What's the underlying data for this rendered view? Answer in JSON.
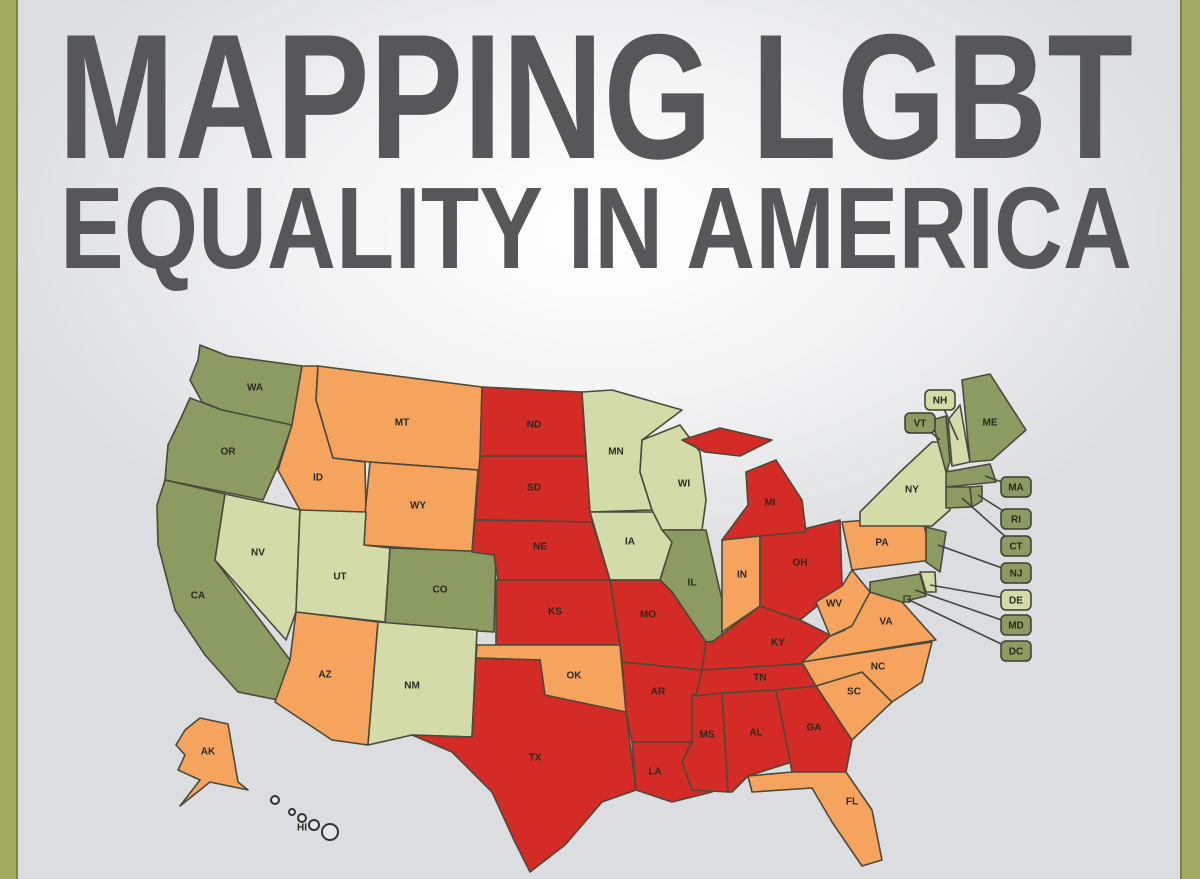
{
  "title": {
    "line1": "MAPPING LGBT",
    "line2": "EQUALITY IN AMERICA"
  },
  "colors": {
    "high": "#8c9b62",
    "medium": "#d3dba9",
    "low": "#f6a35e",
    "lowest": "#d42b27",
    "title": "#575759",
    "border": "#a3aa62",
    "hawaii": "#e4e5e6"
  },
  "states": [
    {
      "code": "WA",
      "category": "high"
    },
    {
      "code": "OR",
      "category": "high"
    },
    {
      "code": "CA",
      "category": "high"
    },
    {
      "code": "NV",
      "category": "medium"
    },
    {
      "code": "ID",
      "category": "low"
    },
    {
      "code": "MT",
      "category": "low"
    },
    {
      "code": "WY",
      "category": "low"
    },
    {
      "code": "UT",
      "category": "medium"
    },
    {
      "code": "CO",
      "category": "high"
    },
    {
      "code": "AZ",
      "category": "low"
    },
    {
      "code": "NM",
      "category": "medium"
    },
    {
      "code": "ND",
      "category": "lowest"
    },
    {
      "code": "SD",
      "category": "lowest"
    },
    {
      "code": "NE",
      "category": "lowest"
    },
    {
      "code": "KS",
      "category": "lowest"
    },
    {
      "code": "OK",
      "category": "low"
    },
    {
      "code": "TX",
      "category": "lowest"
    },
    {
      "code": "MN",
      "category": "medium"
    },
    {
      "code": "IA",
      "category": "medium"
    },
    {
      "code": "WI",
      "category": "medium"
    },
    {
      "code": "IL",
      "category": "high"
    },
    {
      "code": "MO",
      "category": "lowest"
    },
    {
      "code": "AR",
      "category": "lowest"
    },
    {
      "code": "LA",
      "category": "lowest"
    },
    {
      "code": "MS",
      "category": "lowest"
    },
    {
      "code": "AL",
      "category": "lowest"
    },
    {
      "code": "TN",
      "category": "lowest"
    },
    {
      "code": "KY",
      "category": "lowest"
    },
    {
      "code": "IN",
      "category": "low"
    },
    {
      "code": "OH",
      "category": "lowest"
    },
    {
      "code": "MI",
      "category": "lowest"
    },
    {
      "code": "GA",
      "category": "lowest"
    },
    {
      "code": "FL",
      "category": "low"
    },
    {
      "code": "SC",
      "category": "low"
    },
    {
      "code": "NC",
      "category": "low"
    },
    {
      "code": "VA",
      "category": "low"
    },
    {
      "code": "WV",
      "category": "low"
    },
    {
      "code": "PA",
      "category": "low"
    },
    {
      "code": "NY",
      "category": "medium"
    },
    {
      "code": "VT",
      "category": "high"
    },
    {
      "code": "NH",
      "category": "medium"
    },
    {
      "code": "ME",
      "category": "high"
    },
    {
      "code": "MA",
      "category": "high"
    },
    {
      "code": "CT",
      "category": "high"
    },
    {
      "code": "RI",
      "category": "high"
    },
    {
      "code": "NJ",
      "category": "high"
    },
    {
      "code": "DE",
      "category": "medium"
    },
    {
      "code": "MD",
      "category": "high"
    },
    {
      "code": "DC",
      "category": "high"
    },
    {
      "code": "AK",
      "category": "low"
    },
    {
      "code": "HI",
      "category": "hawaii"
    }
  ]
}
